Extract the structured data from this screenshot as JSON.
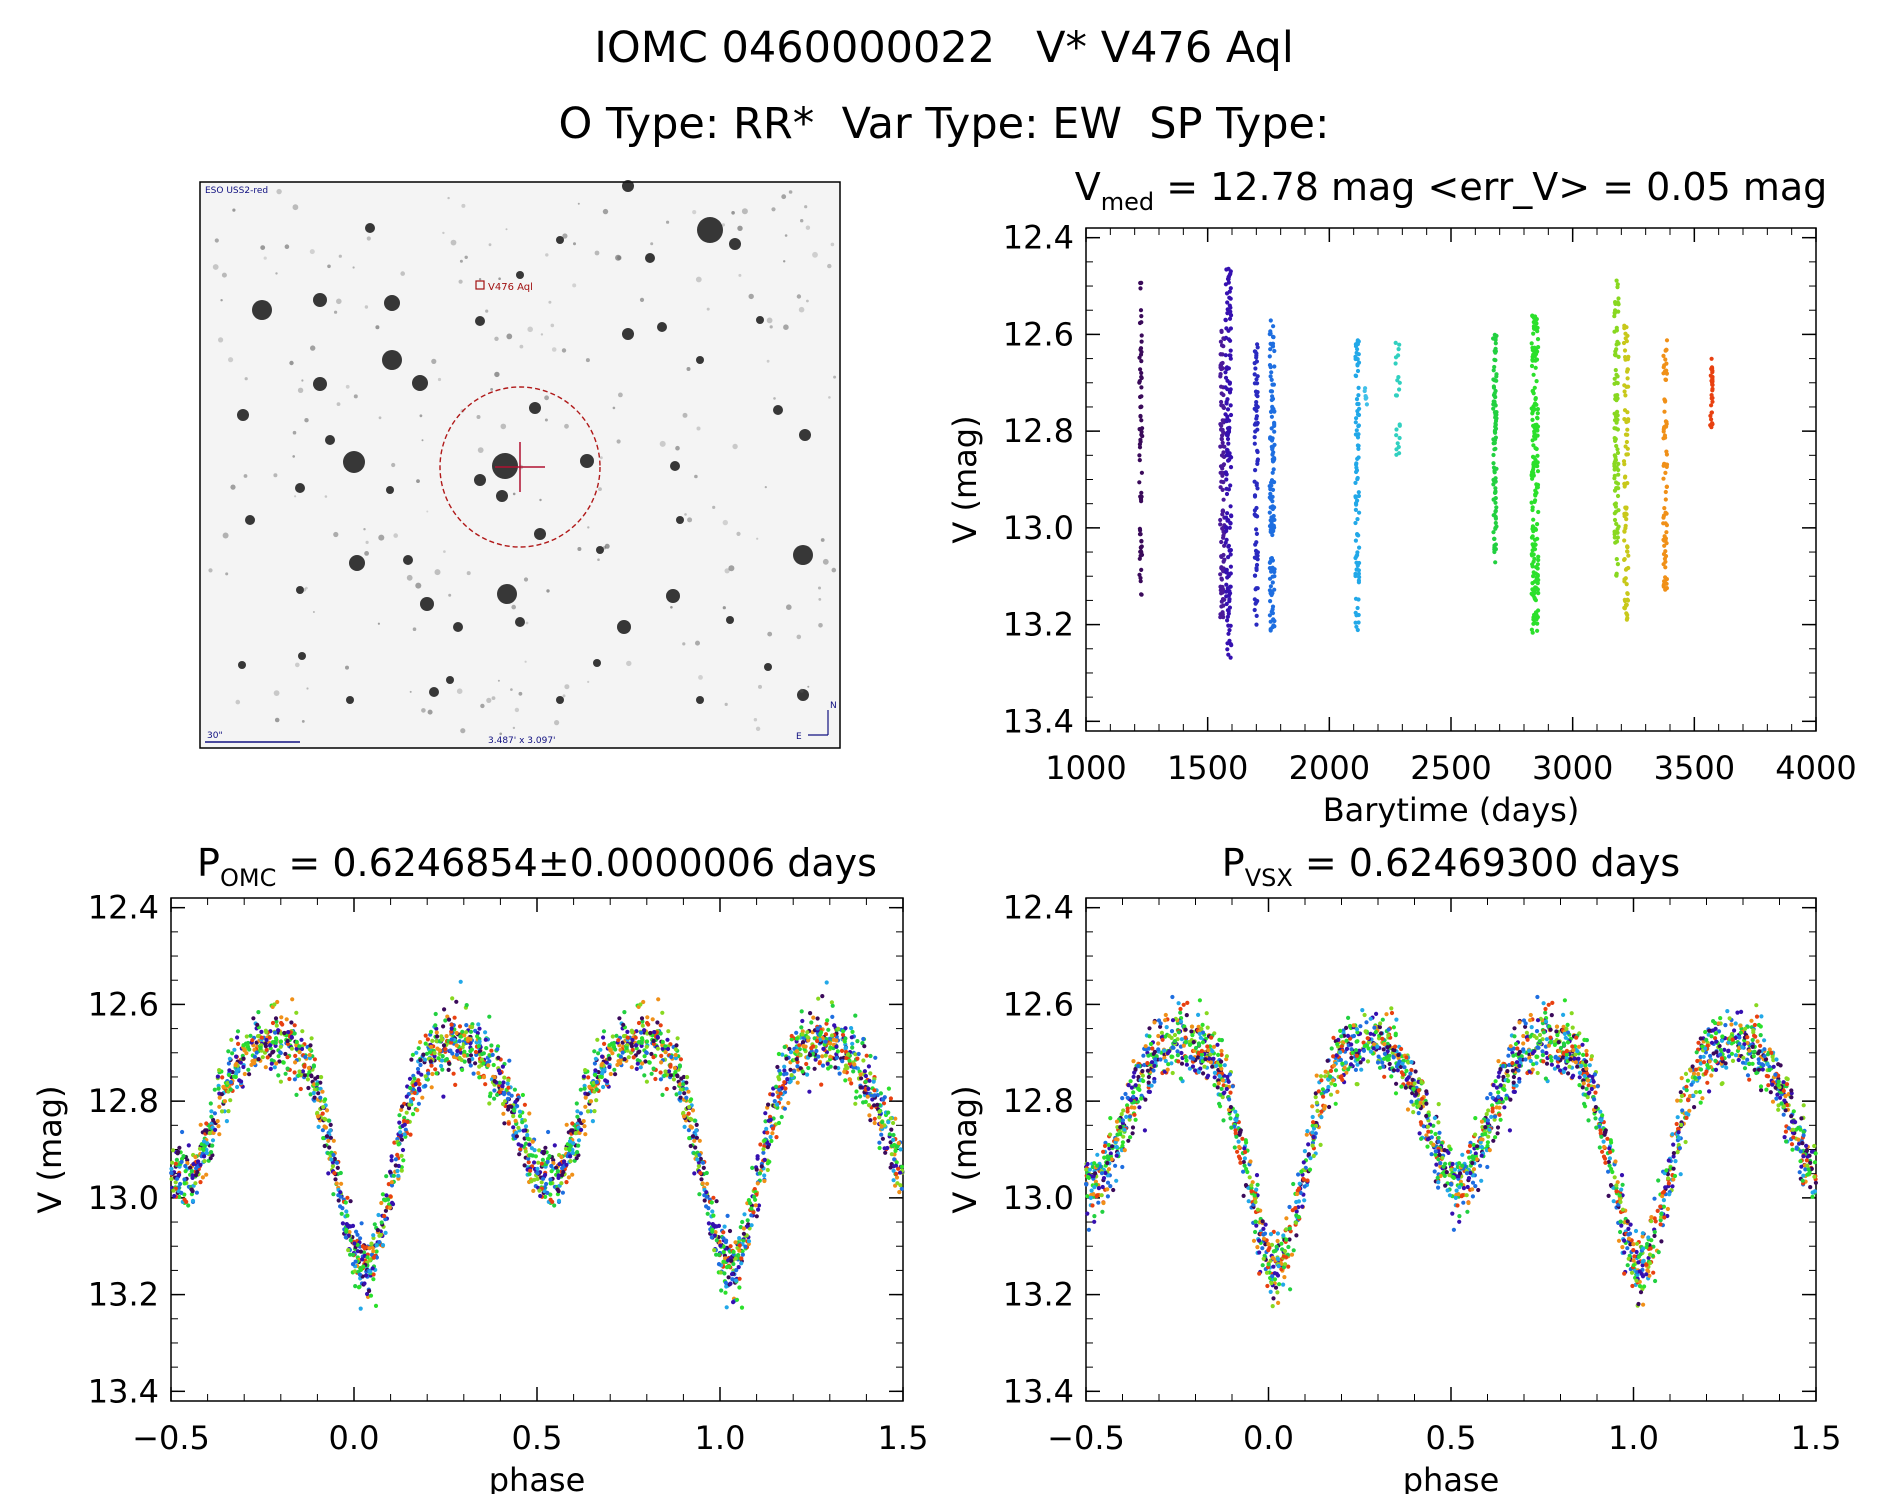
{
  "header": {
    "title": "IOMC 0460000022   V* V476 Aql",
    "subtitle": "O Type: RR*  Var Type: EW  SP Type:"
  },
  "finder": {
    "survey_label": "ESO USS2-red",
    "star_label": "V476 Aql",
    "scale_label": "30\"",
    "size_label": "3.487' x 3.097'",
    "north_label": "N",
    "east_label": "E"
  },
  "chart_data": [
    {
      "id": "timeseries",
      "type": "scatter",
      "title": "V_med = 12.78 mag <err_V> = 0.05 mag",
      "title_parts": {
        "main": "V",
        "sub": "med",
        "rest": " = 12.78 mag <err_V> = 0.05 mag"
      },
      "xlabel": "Barytime (days)",
      "ylabel": "V (mag)",
      "xlim": [
        1000,
        4000
      ],
      "ylim": [
        13.42,
        12.38
      ],
      "xticks": [
        1000,
        1500,
        2000,
        2500,
        3000,
        3500,
        4000
      ],
      "yticks": [
        12.4,
        12.6,
        12.8,
        13.0,
        13.2,
        13.4
      ],
      "grid": false,
      "clusters": [
        {
          "x": 1225,
          "width": 12,
          "ymin": 12.49,
          "ymax": 13.14,
          "count": 70,
          "color": "#3a0a5a"
        },
        {
          "x": 1560,
          "width": 18,
          "ymin": 12.59,
          "ymax": 13.19,
          "count": 110,
          "color": "#4a1a9a"
        },
        {
          "x": 1585,
          "width": 24,
          "ymin": 12.46,
          "ymax": 13.27,
          "count": 150,
          "color": "#3510b0"
        },
        {
          "x": 1700,
          "width": 14,
          "ymin": 12.62,
          "ymax": 13.22,
          "count": 80,
          "color": "#2a2ac0"
        },
        {
          "x": 1765,
          "width": 20,
          "ymin": 12.57,
          "ymax": 13.23,
          "count": 130,
          "color": "#1e6ee0"
        },
        {
          "x": 2115,
          "width": 16,
          "ymin": 12.61,
          "ymax": 13.23,
          "count": 90,
          "color": "#22a8e8"
        },
        {
          "x": 2150,
          "width": 10,
          "ymin": 12.71,
          "ymax": 12.75,
          "count": 6,
          "color": "#40c0e8"
        },
        {
          "x": 2280,
          "width": 20,
          "ymin": 12.61,
          "ymax": 12.85,
          "count": 22,
          "color": "#30d0c0"
        },
        {
          "x": 2680,
          "width": 14,
          "ymin": 12.6,
          "ymax": 13.09,
          "count": 95,
          "color": "#22d040"
        },
        {
          "x": 2845,
          "width": 28,
          "ymin": 12.56,
          "ymax": 13.22,
          "count": 190,
          "color": "#2be02b"
        },
        {
          "x": 3180,
          "width": 18,
          "ymin": 12.48,
          "ymax": 13.1,
          "count": 100,
          "color": "#88d820"
        },
        {
          "x": 3220,
          "width": 18,
          "ymin": 12.58,
          "ymax": 13.19,
          "count": 90,
          "color": "#c8c81a"
        },
        {
          "x": 3380,
          "width": 16,
          "ymin": 12.61,
          "ymax": 13.13,
          "count": 80,
          "color": "#f09018"
        },
        {
          "x": 3570,
          "width": 10,
          "ymin": 12.65,
          "ymax": 12.81,
          "count": 30,
          "color": "#e84010"
        }
      ]
    },
    {
      "id": "phase-omc",
      "type": "scatter",
      "title": "P_OMC = 0.6246854±0.0000006 days",
      "title_parts": {
        "main": "P",
        "sub": "OMC",
        "rest": " = 0.6246854±0.0000006 days"
      },
      "xlabel": "phase",
      "ylabel": "V (mag)",
      "xlim": [
        -0.5,
        1.5
      ],
      "ylim": [
        13.42,
        12.38
      ],
      "xticks": [
        -0.5,
        0.0,
        0.5,
        1.0,
        1.5
      ],
      "yticks": [
        12.4,
        12.6,
        12.8,
        13.0,
        13.2,
        13.4
      ],
      "grid": false,
      "curve": {
        "max_mag": 12.67,
        "primary_min": 13.14,
        "secondary_min": 12.96,
        "primary_phase": 0.03,
        "scatter": 0.06,
        "count": 1300
      },
      "palette": [
        "#3a0a5a",
        "#3510b0",
        "#1e6ee0",
        "#22a8e8",
        "#22d040",
        "#2be02b",
        "#88d820",
        "#f09018",
        "#e84010"
      ]
    },
    {
      "id": "phase-vsx",
      "type": "scatter",
      "title": "P_VSX = 0.62469300 days",
      "title_parts": {
        "main": "P",
        "sub": "VSX",
        "rest": " = 0.62469300 days"
      },
      "xlabel": "phase",
      "ylabel": "V (mag)",
      "xlim": [
        -0.5,
        1.5
      ],
      "ylim": [
        13.42,
        12.38
      ],
      "xticks": [
        -0.5,
        0.0,
        0.5,
        1.0,
        1.5
      ],
      "yticks": [
        12.4,
        12.6,
        12.8,
        13.0,
        13.2,
        13.4
      ],
      "grid": false,
      "curve": {
        "max_mag": 12.67,
        "primary_min": 13.14,
        "secondary_min": 12.96,
        "primary_phase": 0.02,
        "scatter": 0.06,
        "count": 1300
      },
      "palette": [
        "#3a0a5a",
        "#3510b0",
        "#1e6ee0",
        "#22a8e8",
        "#22d040",
        "#2be02b",
        "#88d820",
        "#f09018",
        "#e84010"
      ]
    }
  ]
}
